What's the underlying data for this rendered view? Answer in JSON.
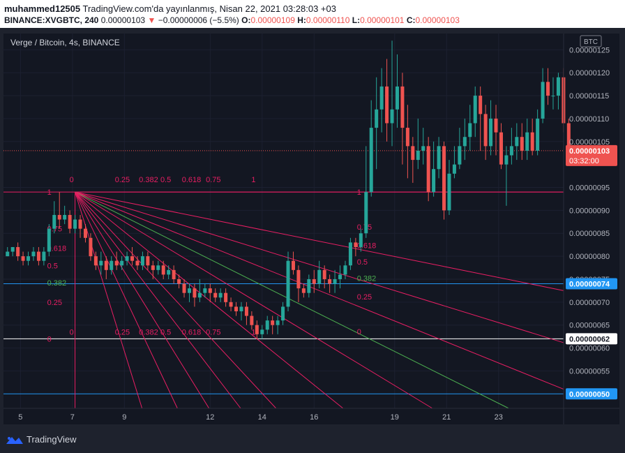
{
  "header": {
    "author": "muhammed12505",
    "published": " TradingView.com'da yayınlanmış, Nisan 22, 2021 03:28:03 +03",
    "symbol": "BINANCE:XVGBTC, 240",
    "last": "0.00000103",
    "arrow": "▼",
    "change": "−0.00000006 (−5.5%)",
    "o_label": "O:",
    "o_value": "0.00000109",
    "h_label": "H:",
    "h_value": "0.00000110",
    "l_label": "L:",
    "l_value": "0.00000101",
    "c_label": "C:",
    "c_value": "0.00000103"
  },
  "footer": {
    "brand": "TradingView",
    "logo_icon": "tradingview-logo-icon"
  },
  "colors": {
    "up": "#26a69a",
    "down": "#ef5350",
    "fib": "#e91e63",
    "fib_mid": "#4caf50",
    "hline_blue": "#2196f3",
    "hline_white": "#ffffff",
    "background": "#131722"
  },
  "chart_data": {
    "type": "candlestick",
    "title": "Verge / Bitcoin, 4s, BINANCE",
    "currency_badge": "BTC",
    "x_ticks": [
      "5",
      "7",
      "9",
      "12",
      "14",
      "16",
      "19",
      "21",
      "23"
    ],
    "y_ticks": [
      "0.00000125",
      "0.00000120",
      "0.00000115",
      "0.00000110",
      "0.00000105",
      "0.00000095",
      "0.00000090",
      "0.00000085",
      "0.00000080",
      "0.00000075",
      "0.00000070",
      "0.00000065",
      "0.00000060",
      "0.00000055"
    ],
    "ylim": [
      4.685e-07,
      1.2855e-06
    ],
    "xlim_candles": [
      0,
      108
    ],
    "candles": [
      [
        8e-07,
        8.1e-07,
        8e-07,
        8.2e-07
      ],
      [
        8.1e-07,
        8.2e-07,
        8e-07,
        8.2e-07
      ],
      [
        8.2e-07,
        8e-07,
        7.9e-07,
        8.3e-07
      ],
      [
        8e-07,
        7.9e-07,
        7.8e-07,
        8.1e-07
      ],
      [
        7.9e-07,
        8e-07,
        7.8e-07,
        8.1e-07
      ],
      [
        8e-07,
        8.1e-07,
        7.9e-07,
        8.2e-07
      ],
      [
        8.1e-07,
        7.9e-07,
        7.8e-07,
        8.2e-07
      ],
      [
        7.9e-07,
        8.1e-07,
        7.8e-07,
        8.2e-07
      ],
      [
        8.1e-07,
        8.6e-07,
        8e-07,
        8.7e-07
      ],
      [
        8.6e-07,
        8.9e-07,
        8.5e-07,
        9.2e-07
      ],
      [
        8.9e-07,
        8.8e-07,
        8.6e-07,
        9.4e-07
      ],
      [
        8.8e-07,
        8.9e-07,
        8.7e-07,
        9.1e-07
      ],
      [
        8.9e-07,
        8.6e-07,
        8.5e-07,
        9e-07
      ],
      [
        8.6e-07,
        8.8e-07,
        8.5e-07,
        8.9e-07
      ],
      [
        8.8e-07,
        8.6e-07,
        8.4e-07,
        8.9e-07
      ],
      [
        8.6e-07,
        8.4e-07,
        8.3e-07,
        8.7e-07
      ],
      [
        8.4e-07,
        8e-07,
        7.9e-07,
        8.5e-07
      ],
      [
        8e-07,
        7.8e-07,
        7.7e-07,
        8.1e-07
      ],
      [
        7.8e-07,
        7.9e-07,
        7.6e-07,
        8.1e-07
      ],
      [
        7.9e-07,
        7.7e-07,
        7.5e-07,
        8e-07
      ],
      [
        7.7e-07,
        7.9e-07,
        7.6e-07,
        8e-07
      ],
      [
        7.9e-07,
        7.8e-07,
        7.7e-07,
        8.1e-07
      ],
      [
        7.8e-07,
        7.9e-07,
        7.7e-07,
        8e-07
      ],
      [
        7.9e-07,
        8e-07,
        7.8e-07,
        8.1e-07
      ],
      [
        8e-07,
        7.9e-07,
        7.8e-07,
        8.2e-07
      ],
      [
        7.9e-07,
        7.8e-07,
        7.7e-07,
        8e-07
      ],
      [
        7.8e-07,
        8e-07,
        7.7e-07,
        8.1e-07
      ],
      [
        8e-07,
        7.8e-07,
        7.7e-07,
        8.1e-07
      ],
      [
        7.8e-07,
        7.7e-07,
        7.5e-07,
        7.9e-07
      ],
      [
        7.7e-07,
        7.8e-07,
        7.6e-07,
        7.9e-07
      ],
      [
        7.8e-07,
        7.6e-07,
        7.5e-07,
        7.9e-07
      ],
      [
        7.6e-07,
        7.7e-07,
        7.5e-07,
        7.8e-07
      ],
      [
        7.7e-07,
        7.5e-07,
        7.4e-07,
        7.8e-07
      ],
      [
        7.5e-07,
        7.4e-07,
        7.3e-07,
        7.6e-07
      ],
      [
        7.4e-07,
        7.2e-07,
        7.1e-07,
        7.5e-07
      ],
      [
        7.2e-07,
        7.3e-07,
        7e-07,
        7.4e-07
      ],
      [
        7.3e-07,
        7.1e-07,
        6.9e-07,
        7.4e-07
      ],
      [
        7.1e-07,
        7.2e-07,
        7e-07,
        7.5e-07
      ],
      [
        7.2e-07,
        7.3e-07,
        7.1e-07,
        7.4e-07
      ],
      [
        7.3e-07,
        7.2e-07,
        7e-07,
        7.4e-07
      ],
      [
        7.2e-07,
        7.1e-07,
        7e-07,
        7.3e-07
      ],
      [
        7.1e-07,
        7.2e-07,
        7e-07,
        7.3e-07
      ],
      [
        7.2e-07,
        7e-07,
        6.9e-07,
        7.3e-07
      ],
      [
        7e-07,
        6.9e-07,
        6.8e-07,
        7.1e-07
      ],
      [
        6.9e-07,
        6.8e-07,
        6.7e-07,
        7e-07
      ],
      [
        6.8e-07,
        6.9e-07,
        6.6e-07,
        7e-07
      ],
      [
        6.9e-07,
        6.7e-07,
        6.5e-07,
        7e-07
      ],
      [
        6.7e-07,
        6.5e-07,
        6.4e-07,
        6.8e-07
      ],
      [
        6.5e-07,
        6.3e-07,
        6.2e-07,
        6.6e-07
      ],
      [
        6.3e-07,
        6.4e-07,
        6.2e-07,
        6.5e-07
      ],
      [
        6.4e-07,
        6.6e-07,
        6.3e-07,
        6.7e-07
      ],
      [
        6.6e-07,
        6.5e-07,
        6.3e-07,
        6.7e-07
      ],
      [
        6.5e-07,
        6.6e-07,
        6.3e-07,
        6.7e-07
      ],
      [
        6.6e-07,
        6.9e-07,
        6.5e-07,
        7e-07
      ],
      [
        6.9e-07,
        7.9e-07,
        6.8e-07,
        8.1e-07
      ],
      [
        7.9e-07,
        7.7e-07,
        7.6e-07,
        8.1e-07
      ],
      [
        7.7e-07,
        7.3e-07,
        7e-07,
        7.8e-07
      ],
      [
        7.3e-07,
        7.2e-07,
        7.1e-07,
        7.4e-07
      ],
      [
        7.2e-07,
        7.5e-07,
        7.1e-07,
        7.6e-07
      ],
      [
        7.5e-07,
        7.4e-07,
        7.2e-07,
        7.7e-07
      ],
      [
        7.4e-07,
        7.7e-07,
        7.3e-07,
        7.9e-07
      ],
      [
        7.7e-07,
        7.5e-07,
        7.3e-07,
        7.8e-07
      ],
      [
        7.5e-07,
        7.4e-07,
        7.2e-07,
        7.6e-07
      ],
      [
        7.4e-07,
        7.5e-07,
        7.2e-07,
        7.7e-07
      ],
      [
        7.5e-07,
        7.6e-07,
        7.3e-07,
        7.8e-07
      ],
      [
        7.6e-07,
        7.8e-07,
        7.5e-07,
        7.9e-07
      ],
      [
        7.8e-07,
        8.3e-07,
        7.7e-07,
        8.4e-07
      ],
      [
        8.3e-07,
        8.2e-07,
        8e-07,
        8.4e-07
      ],
      [
        8.2e-07,
        8.5e-07,
        8.1e-07,
        8.6e-07
      ],
      [
        8.5e-07,
        9.4e-07,
        8.4e-07,
        1.04e-06
      ],
      [
        9.4e-07,
        1.08e-06,
        9.3e-07,
        1.14e-06
      ],
      [
        1.08e-06,
        1.12e-06,
        9.9e-07,
        1.19e-06
      ],
      [
        1.12e-06,
        1.17e-06,
        1.07e-06,
        1.21e-06
      ],
      [
        1.17e-06,
        1.09e-06,
        1.05e-06,
        1.23e-06
      ],
      [
        1.09e-06,
        1.12e-06,
        1.04e-06,
        1.27e-06
      ],
      [
        1.12e-06,
        1.17e-06,
        1.08e-06,
        1.24e-06
      ],
      [
        1.17e-06,
        1.08e-06,
        1e-06,
        1.2e-06
      ],
      [
        1.08e-06,
        1.04e-06,
        9.7e-07,
        1.13e-06
      ],
      [
        1.04e-06,
        1.01e-06,
        9.6e-07,
        1.06e-06
      ],
      [
        1.01e-06,
        1.03e-06,
        9.9e-07,
        1.1e-06
      ],
      [
        1.03e-06,
        1.04e-06,
        1e-06,
        1.08e-06
      ],
      [
        1.04e-06,
        9.4e-07,
        9.2e-07,
        1.06e-06
      ],
      [
        9.4e-07,
        9.9e-07,
        9.3e-07,
        1.05e-06
      ],
      [
        9.9e-07,
        1.04e-06,
        9.7e-07,
        1.06e-06
      ],
      [
        1.04e-06,
        9e-07,
        8.8e-07,
        1.05e-06
      ],
      [
        9e-07,
        9.8e-07,
        8.9e-07,
        1.01e-06
      ],
      [
        9.8e-07,
        1e-06,
        9.7e-07,
        1.04e-06
      ],
      [
        1e-06,
        1.04e-06,
        9.9e-07,
        1.08e-06
      ],
      [
        1.04e-06,
        1.06e-06,
        1.01e-06,
        1.1e-06
      ],
      [
        1.06e-06,
        1.09e-06,
        1.03e-06,
        1.13e-06
      ],
      [
        1.09e-06,
        1.15e-06,
        1.06e-06,
        1.17e-06
      ],
      [
        1.15e-06,
        1.11e-06,
        1.03e-06,
        1.17e-06
      ],
      [
        1.11e-06,
        1.04e-06,
        1.01e-06,
        1.13e-06
      ],
      [
        1.04e-06,
        1.1e-06,
        1.02e-06,
        1.14e-06
      ],
      [
        1.1e-06,
        1.07e-06,
        1.02e-06,
        1.13e-06
      ],
      [
        1.07e-06,
        1e-06,
        9.9e-07,
        1.09e-06
      ],
      [
        1e-06,
        1.02e-06,
        9.1e-07,
        1.04e-06
      ],
      [
        1.02e-06,
        1.04e-06,
        1e-06,
        1.08e-06
      ],
      [
        1.04e-06,
        1.06e-06,
        1.01e-06,
        1.09e-06
      ],
      [
        1.06e-06,
        1.03e-06,
        1.01e-06,
        1.09e-06
      ],
      [
        1.03e-06,
        1.07e-06,
        1.01e-06,
        1.1e-06
      ],
      [
        1.07e-06,
        1.03e-06,
        1.02e-06,
        1.1e-06
      ],
      [
        1.03e-06,
        1.1e-06,
        1.02e-06,
        1.12e-06
      ],
      [
        1.1e-06,
        1.18e-06,
        1.09e-06,
        1.21e-06
      ],
      [
        1.18e-06,
        1.15e-06,
        1.13e-06,
        1.21e-06
      ],
      [
        1.15e-06,
        1.15e-06,
        1.12e-06,
        1.19e-06
      ],
      [
        1.15e-06,
        1.19e-06,
        1.12e-06,
        1.2e-06
      ],
      [
        1.19e-06,
        1.09e-06,
        1.07e-06,
        1.21e-06
      ],
      [
        1.09e-06,
        1.03e-06,
        1.01e-06,
        1.1e-06
      ]
    ],
    "fan": {
      "origin": {
        "i": 13,
        "v": 9.4e-07
      },
      "bottom": {
        "i": 48,
        "v": 6.2e-07
      },
      "levels": [
        "1",
        "0.75",
        "0.618",
        "0.5",
        "0.382",
        "0.25",
        "0"
      ],
      "highlight_level": "0.382"
    },
    "horizontal_lines": [
      {
        "value": 7.4e-07,
        "label": "0.00000074",
        "color": "#2196f3",
        "label_bg": "#2196f3",
        "label_color": "#ffffff"
      },
      {
        "value": 6.2e-07,
        "label": "0.00000062",
        "color": "#ffffff",
        "label_bg": "#ffffff",
        "label_color": "#131722"
      },
      {
        "value": 5e-07,
        "label": "0.00000050",
        "color": "#2196f3",
        "label_bg": "#2196f3",
        "label_color": "#ffffff"
      },
      {
        "value": 9.4e-07,
        "label": "",
        "color": "#e91e63",
        "label_bg": "",
        "label_color": ""
      }
    ],
    "last_price": {
      "value": 1.03e-06,
      "label": "0.00000103",
      "countdown": "03:32:00"
    }
  }
}
